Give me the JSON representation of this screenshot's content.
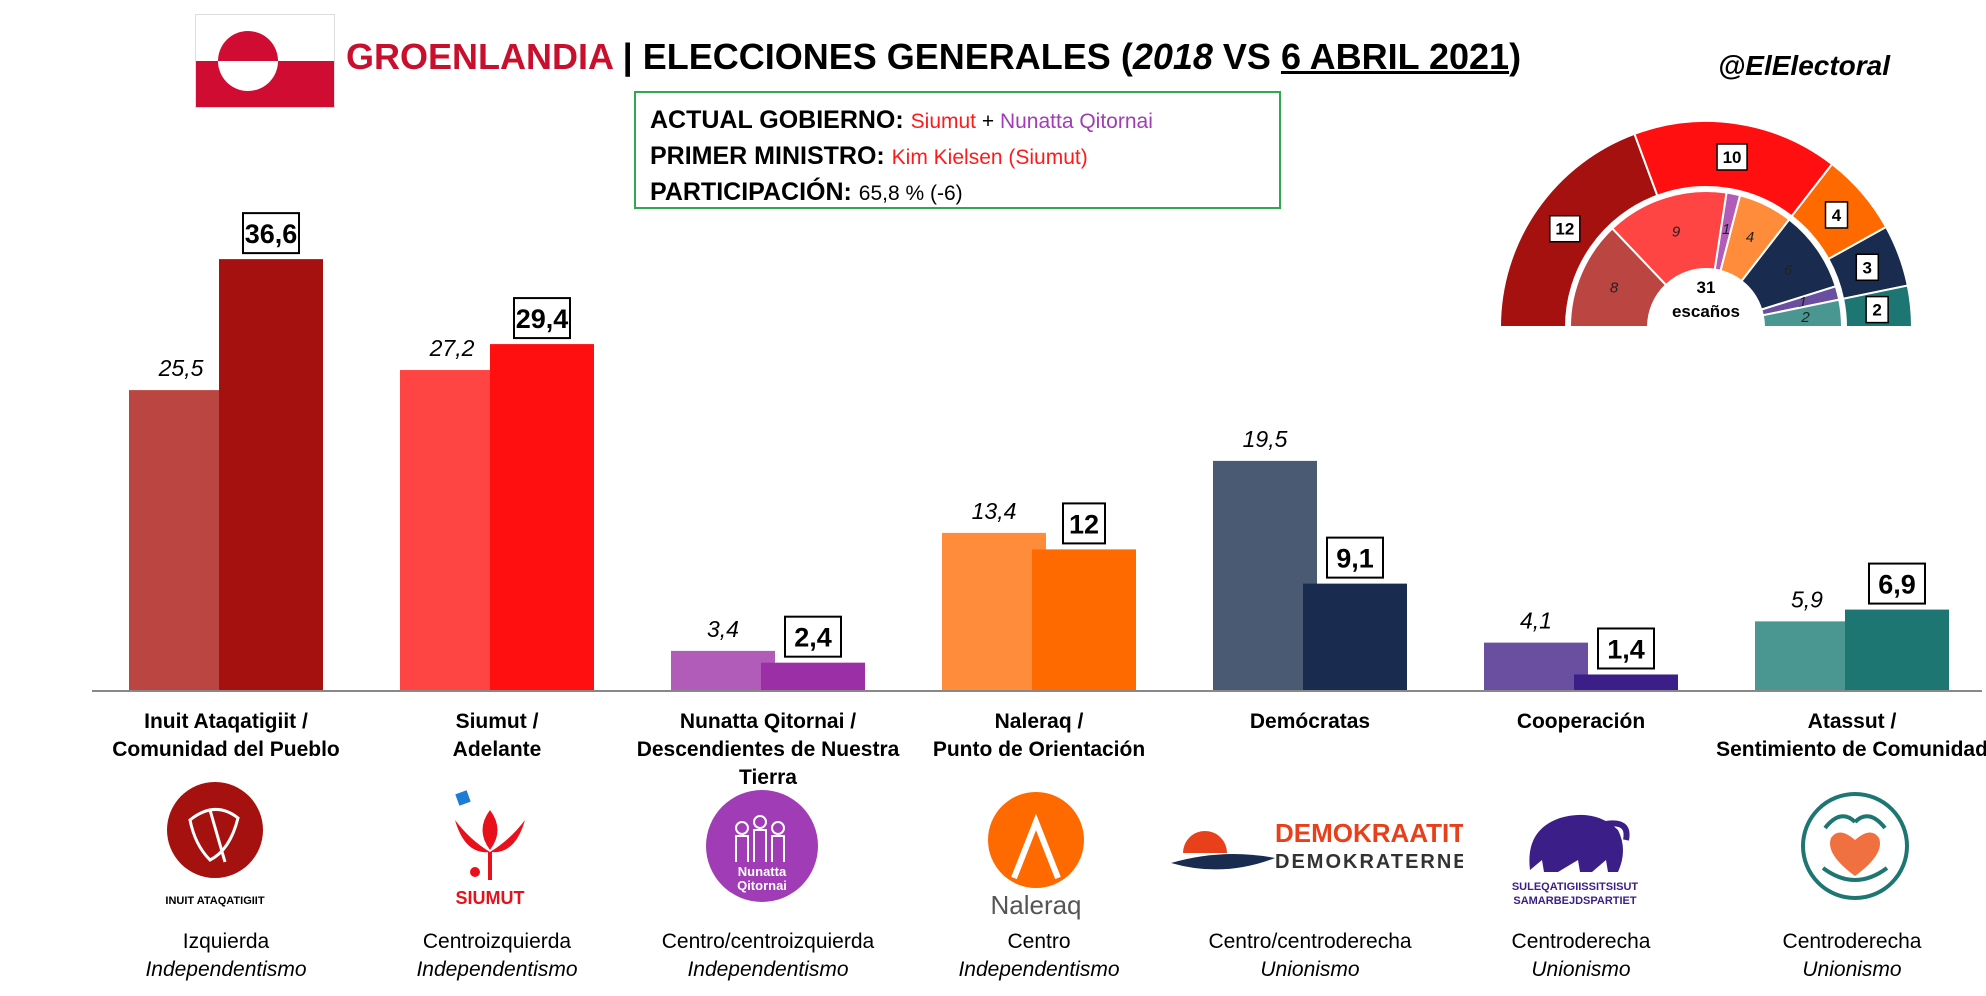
{
  "header": {
    "title_country": "GROENLANDIA",
    "title_sep": " | ELECCIONES GENERALES (",
    "title_year_old": "2018",
    "title_vs": " VS ",
    "title_date": "6 ABRIL 2021",
    "title_close": ")",
    "handle": "@ElElectoral"
  },
  "info": {
    "gov_label": "ACTUAL GOBIERNO:",
    "gov_party1": "Siumut",
    "gov_plus": " + ",
    "gov_party2": "Nunatta Qitornai",
    "pm_label": "PRIMER MINISTRO:",
    "pm_value": "Kim Kielsen (Siumut)",
    "part_label": "PARTICIPACIÓN:",
    "part_value": "65,8 % (-6)"
  },
  "colors": {
    "title_red": "#c8102e",
    "siumut_text": "#ff1a1a",
    "nq_text": "#a03cb5",
    "info_border": "#2fa84f"
  },
  "chart_data": {
    "type": "bar",
    "categories": [
      "Inuit Ataqatigiit / Comunidad del Pueblo",
      "Siumut / Adelante",
      "Nunatta Qitornai / Descendientes de Nuestra Tierra",
      "Naleraq / Punto de Orientación",
      "Demócratas",
      "Cooperación",
      "Atassut / Sentimiento de Comunidad"
    ],
    "series": [
      {
        "values": [
          25.5,
          27.2,
          3.4,
          13.4,
          19.5,
          4.1,
          5.9
        ],
        "labels": [
          "25,5",
          "27,2",
          "3,4",
          "13,4",
          "19,5",
          "4,1",
          "5,9"
        ]
      },
      {
        "values": [
          36.6,
          29.4,
          2.4,
          12,
          9.1,
          1.4,
          6.9
        ],
        "labels": [
          "36,6",
          "29,4",
          "2,4",
          "12",
          "9,1",
          "1,4",
          "6,9"
        ]
      }
    ],
    "ylim": [
      0,
      40
    ],
    "grid": false,
    "colors_old": [
      "#bb4541",
      "#ff4444",
      "#b05cb8",
      "#ff8c3a",
      "#4a5a73",
      "#6a4fa0",
      "#4a9691"
    ],
    "colors_new": [
      "#a5110f",
      "#ff0f0f",
      "#9b2fa6",
      "#ff6a00",
      "#192c4f",
      "#3b1e87",
      "#1d7672"
    ]
  },
  "seats": {
    "total_label": "31",
    "total_sub": "escaños",
    "outer": [
      {
        "value": 12,
        "label": "12",
        "color": "#a5110f"
      },
      {
        "value": 10,
        "label": "10",
        "color": "#ff0f0f"
      },
      {
        "value": 4,
        "label": "4",
        "color": "#ff6a00"
      },
      {
        "value": 3,
        "label": "3",
        "color": "#192c4f"
      },
      {
        "value": 2,
        "label": "2",
        "color": "#1d7672"
      }
    ],
    "inner": [
      {
        "value": 8,
        "label": "8",
        "color": "#bb4541"
      },
      {
        "value": 9,
        "label": "9",
        "color": "#ff4444"
      },
      {
        "value": 1,
        "label": "1",
        "color": "#b05cb8"
      },
      {
        "value": 4,
        "label": "4",
        "color": "#ff8c3a"
      },
      {
        "value": 6,
        "label": "6",
        "color": "#192c4f"
      },
      {
        "value": 1,
        "label": "1",
        "color": "#6a4fa0"
      },
      {
        "value": 2,
        "label": "2",
        "color": "#4a9691"
      }
    ]
  },
  "parties": [
    {
      "name1": "Inuit Ataqatigiit /",
      "name2": "Comunidad del Pueblo",
      "name3": "",
      "ideo1": "Izquierda",
      "ideo2": "Independentismo",
      "logo_text": "INUIT ATAQATIGIIT",
      "logo_icon": "inuit-ataqatigiit-logo-icon"
    },
    {
      "name1": "Siumut /",
      "name2": "Adelante",
      "name3": "",
      "ideo1": "Centroizquierda",
      "ideo2": "Independentismo",
      "logo_text": "SIUMUT",
      "logo_icon": "siumut-flower-logo-icon"
    },
    {
      "name1": "Nunatta Qitornai /",
      "name2": "Descendientes de Nuestra",
      "name3": "Tierra",
      "ideo1": "Centro/centroizquierda",
      "ideo2": "Independentismo",
      "logo_text": "Nunatta Qitornai",
      "logo_icon": "nunatta-qitornai-logo-icon"
    },
    {
      "name1": "Naleraq /",
      "name2": "Punto de Orientación",
      "name3": "",
      "ideo1": "Centro",
      "ideo2": "Independentismo",
      "logo_text": "Naleraq",
      "logo_icon": "naleraq-logo-icon"
    },
    {
      "name1": "Demócratas",
      "name2": "",
      "name3": "",
      "ideo1": "Centro/centroderecha",
      "ideo2": "Unionismo",
      "logo_text": "DEMOKRAATIT",
      "logo_text2": "DEMOKRATERNE",
      "logo_icon": "demokraatit-logo-icon"
    },
    {
      "name1": "Cooperación",
      "name2": "",
      "name3": "",
      "ideo1": "Centroderecha",
      "ideo2": "Unionismo",
      "logo_text": "SULEQATIGIISSITSISUT",
      "logo_text2": "SAMARBEJDSPARTIET",
      "logo_icon": "musk-ox-logo-icon"
    },
    {
      "name1": "Atassut /",
      "name2": "Sentimiento de Comunidad",
      "name3": "",
      "ideo1": "Centroderecha",
      "ideo2": "Unionismo",
      "logo_text": "",
      "logo_icon": "atassut-heart-logo-icon"
    }
  ]
}
